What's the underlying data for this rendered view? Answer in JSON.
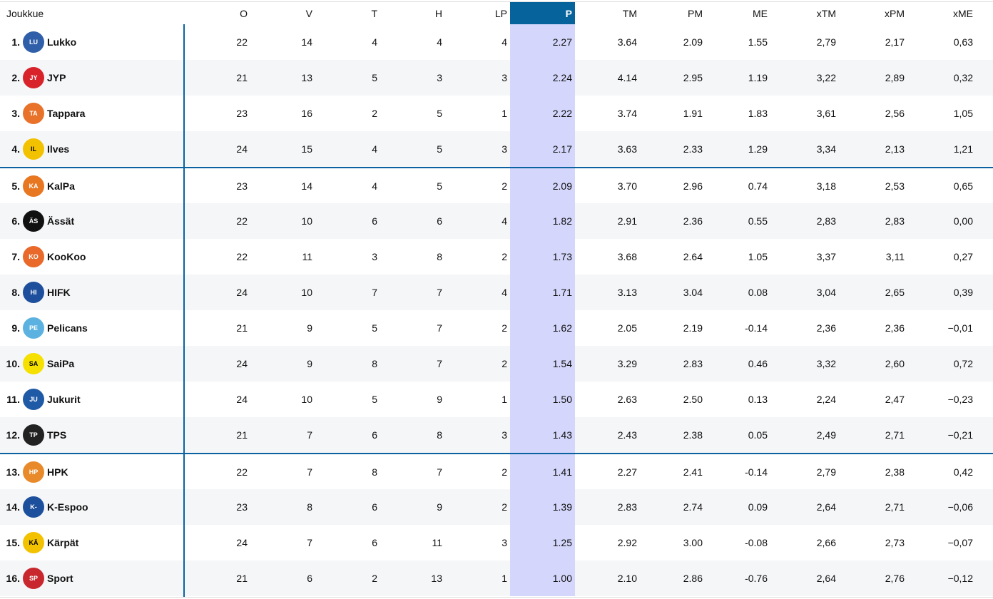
{
  "columns": [
    "Joukkue",
    "O",
    "V",
    "T",
    "H",
    "LP",
    "P",
    "TM",
    "PM",
    "ME",
    "xTM",
    "xPM",
    "xME"
  ],
  "highlight_color": "#07639c",
  "rows": [
    {
      "rank": "1.",
      "team": "Lukko",
      "logo": "lukko-logo",
      "color": "#2f5fa8",
      "vals": [
        "22",
        "14",
        "4",
        "4",
        "4",
        "2.27",
        "3.64",
        "2.09",
        "1.55",
        "2,79",
        "2,17",
        "0,63"
      ]
    },
    {
      "rank": "2.",
      "team": "JYP",
      "logo": "jyp-logo",
      "color": "#d8232a",
      "vals": [
        "21",
        "13",
        "5",
        "3",
        "3",
        "2.24",
        "4.14",
        "2.95",
        "1.19",
        "3,22",
        "2,89",
        "0,32"
      ]
    },
    {
      "rank": "3.",
      "team": "Tappara",
      "logo": "tappara-logo",
      "color": "#e8722a",
      "vals": [
        "23",
        "16",
        "2",
        "5",
        "1",
        "2.22",
        "3.74",
        "1.91",
        "1.83",
        "3,61",
        "2,56",
        "1,05"
      ]
    },
    {
      "rank": "4.",
      "team": "Ilves",
      "logo": "ilves-logo",
      "color": "#f2c200",
      "vals": [
        "24",
        "15",
        "4",
        "5",
        "3",
        "2.17",
        "3.63",
        "2.33",
        "1.29",
        "3,34",
        "2,13",
        "1,21"
      ]
    },
    {
      "rank": "5.",
      "team": "KalPa",
      "logo": "kalpa-logo",
      "color": "#e87722",
      "vals": [
        "23",
        "14",
        "4",
        "5",
        "2",
        "2.09",
        "3.70",
        "2.96",
        "0.74",
        "3,18",
        "2,53",
        "0,65"
      ]
    },
    {
      "rank": "6.",
      "team": "Ässät",
      "logo": "assat-logo",
      "color": "#111111",
      "vals": [
        "22",
        "10",
        "6",
        "6",
        "4",
        "1.82",
        "2.91",
        "2.36",
        "0.55",
        "2,83",
        "2,83",
        "0,00"
      ]
    },
    {
      "rank": "7.",
      "team": "KooKoo",
      "logo": "kookoo-logo",
      "color": "#e8692a",
      "vals": [
        "22",
        "11",
        "3",
        "8",
        "2",
        "1.73",
        "3.68",
        "2.64",
        "1.05",
        "3,37",
        "3,11",
        "0,27"
      ]
    },
    {
      "rank": "8.",
      "team": "HIFK",
      "logo": "hifk-logo",
      "color": "#1e4f9c",
      "vals": [
        "24",
        "10",
        "7",
        "7",
        "4",
        "1.71",
        "3.13",
        "3.04",
        "0.08",
        "3,04",
        "2,65",
        "0,39"
      ]
    },
    {
      "rank": "9.",
      "team": "Pelicans",
      "logo": "pelicans-logo",
      "color": "#5bb2e0",
      "vals": [
        "21",
        "9",
        "5",
        "7",
        "2",
        "1.62",
        "2.05",
        "2.19",
        "-0.14",
        "2,36",
        "2,36",
        "−0,01"
      ]
    },
    {
      "rank": "10.",
      "team": "SaiPa",
      "logo": "saipa-logo",
      "color": "#f5e000",
      "vals": [
        "24",
        "9",
        "8",
        "7",
        "2",
        "1.54",
        "3.29",
        "2.83",
        "0.46",
        "3,32",
        "2,60",
        "0,72"
      ]
    },
    {
      "rank": "11.",
      "team": "Jukurit",
      "logo": "jukurit-logo",
      "color": "#1f5aa6",
      "vals": [
        "24",
        "10",
        "5",
        "9",
        "1",
        "1.50",
        "2.63",
        "2.50",
        "0.13",
        "2,24",
        "2,47",
        "−0,23"
      ]
    },
    {
      "rank": "12.",
      "team": "TPS",
      "logo": "tps-logo",
      "color": "#222222",
      "vals": [
        "21",
        "7",
        "6",
        "8",
        "3",
        "1.43",
        "2.43",
        "2.38",
        "0.05",
        "2,49",
        "2,71",
        "−0,21"
      ]
    },
    {
      "rank": "13.",
      "team": "HPK",
      "logo": "hpk-logo",
      "color": "#e8892a",
      "vals": [
        "22",
        "7",
        "8",
        "7",
        "2",
        "1.41",
        "2.27",
        "2.41",
        "-0.14",
        "2,79",
        "2,38",
        "0,42"
      ]
    },
    {
      "rank": "14.",
      "team": "K-Espoo",
      "logo": "k-espoo-logo",
      "color": "#1c4f9c",
      "vals": [
        "23",
        "8",
        "6",
        "9",
        "2",
        "1.39",
        "2.83",
        "2.74",
        "0.09",
        "2,64",
        "2,71",
        "−0,06"
      ]
    },
    {
      "rank": "15.",
      "team": "Kärpät",
      "logo": "karpat-logo",
      "color": "#f2c200",
      "vals": [
        "24",
        "7",
        "6",
        "11",
        "3",
        "1.25",
        "2.92",
        "3.00",
        "-0.08",
        "2,66",
        "2,73",
        "−0,07"
      ]
    },
    {
      "rank": "16.",
      "team": "Sport",
      "logo": "sport-logo",
      "color": "#c8282d",
      "vals": [
        "21",
        "6",
        "2",
        "13",
        "1",
        "1.00",
        "2.10",
        "2.86",
        "-0.76",
        "2,64",
        "2,76",
        "−0,12"
      ]
    }
  ]
}
